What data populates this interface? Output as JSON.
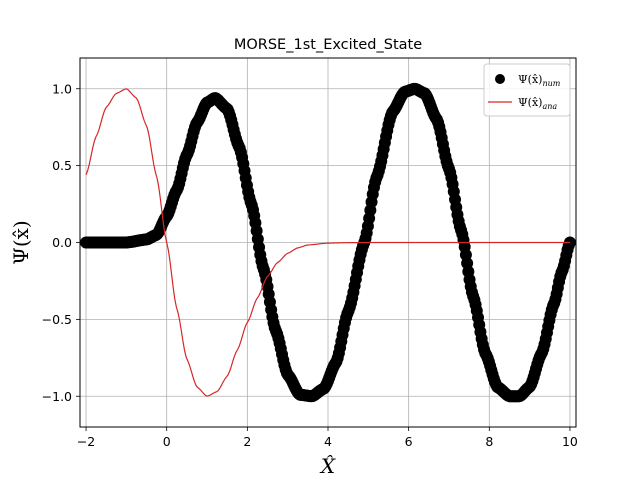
{
  "chart_data": {
    "type": "scatter+line",
    "title": "MORSE_1st_Excited_State",
    "xlabel": "X̂",
    "ylabel": "Ψ(x̂)",
    "xlim": [
      -2.15,
      10.15
    ],
    "ylim": [
      -1.2,
      1.2
    ],
    "xticks": [
      -2,
      0,
      2,
      4,
      6,
      8,
      10
    ],
    "yticks": [
      -1.0,
      -0.5,
      0.0,
      0.5,
      1.0
    ],
    "xtick_labels": [
      "−2",
      "0",
      "2",
      "4",
      "6",
      "8",
      "10"
    ],
    "ytick_labels": [
      "−1.0",
      "−0.5",
      "0.0",
      "0.5",
      "1.0"
    ],
    "grid": true,
    "legend_position": "top-right",
    "series": [
      {
        "name": "Ψ(x̂)num",
        "legend_main": "Ψ(x̂)",
        "legend_sub": "num",
        "kind": "scatter",
        "color": "#000000",
        "points": [
          [
            -2.0,
            0.0
          ],
          [
            -1.5,
            0.0
          ],
          [
            -1.0,
            0.0
          ],
          [
            -0.5,
            0.02
          ],
          [
            -0.25,
            0.05
          ],
          [
            0.0,
            0.17
          ],
          [
            0.25,
            0.34
          ],
          [
            0.5,
            0.57
          ],
          [
            0.75,
            0.78
          ],
          [
            1.0,
            0.91
          ],
          [
            1.2,
            0.94
          ],
          [
            1.5,
            0.87
          ],
          [
            1.8,
            0.62
          ],
          [
            2.1,
            0.25
          ],
          [
            2.4,
            -0.17
          ],
          [
            2.7,
            -0.57
          ],
          [
            3.0,
            -0.86
          ],
          [
            3.3,
            -0.99
          ],
          [
            3.6,
            -1.0
          ],
          [
            3.9,
            -0.95
          ],
          [
            4.2,
            -0.78
          ],
          [
            4.5,
            -0.45
          ],
          [
            4.9,
            0.0
          ],
          [
            5.2,
            0.42
          ],
          [
            5.6,
            0.85
          ],
          [
            5.9,
            0.98
          ],
          [
            6.15,
            1.0
          ],
          [
            6.4,
            0.97
          ],
          [
            6.7,
            0.8
          ],
          [
            7.0,
            0.48
          ],
          [
            7.3,
            0.08
          ],
          [
            7.6,
            -0.35
          ],
          [
            7.9,
            -0.72
          ],
          [
            8.2,
            -0.94
          ],
          [
            8.5,
            -1.0
          ],
          [
            8.75,
            -1.0
          ],
          [
            9.0,
            -0.94
          ],
          [
            9.3,
            -0.72
          ],
          [
            9.6,
            -0.4
          ],
          [
            9.8,
            -0.19
          ],
          [
            10.0,
            0.0
          ]
        ]
      },
      {
        "name": "Ψ(x̂)ana",
        "legend_main": "Ψ(x̂)",
        "legend_sub": "ana",
        "kind": "line",
        "color": "#d62728",
        "points": [
          [
            -2.0,
            0.44
          ],
          [
            -1.75,
            0.69
          ],
          [
            -1.5,
            0.88
          ],
          [
            -1.25,
            0.97
          ],
          [
            -1.0,
            1.0
          ],
          [
            -0.75,
            0.94
          ],
          [
            -0.5,
            0.76
          ],
          [
            -0.25,
            0.43
          ],
          [
            0.0,
            0.0
          ],
          [
            0.25,
            -0.43
          ],
          [
            0.5,
            -0.76
          ],
          [
            0.75,
            -0.94
          ],
          [
            1.0,
            -1.0
          ],
          [
            1.25,
            -0.97
          ],
          [
            1.5,
            -0.87
          ],
          [
            1.75,
            -0.7
          ],
          [
            2.0,
            -0.52
          ],
          [
            2.25,
            -0.36
          ],
          [
            2.5,
            -0.22
          ],
          [
            2.75,
            -0.13
          ],
          [
            3.0,
            -0.07
          ],
          [
            3.25,
            -0.035
          ],
          [
            3.5,
            -0.016
          ],
          [
            4.0,
            -0.004
          ],
          [
            4.5,
            -0.001
          ],
          [
            5.0,
            0.0
          ],
          [
            6.0,
            0.0
          ],
          [
            7.0,
            0.0
          ],
          [
            8.0,
            0.0
          ],
          [
            9.0,
            0.0
          ],
          [
            10.0,
            0.0
          ]
        ]
      }
    ]
  }
}
